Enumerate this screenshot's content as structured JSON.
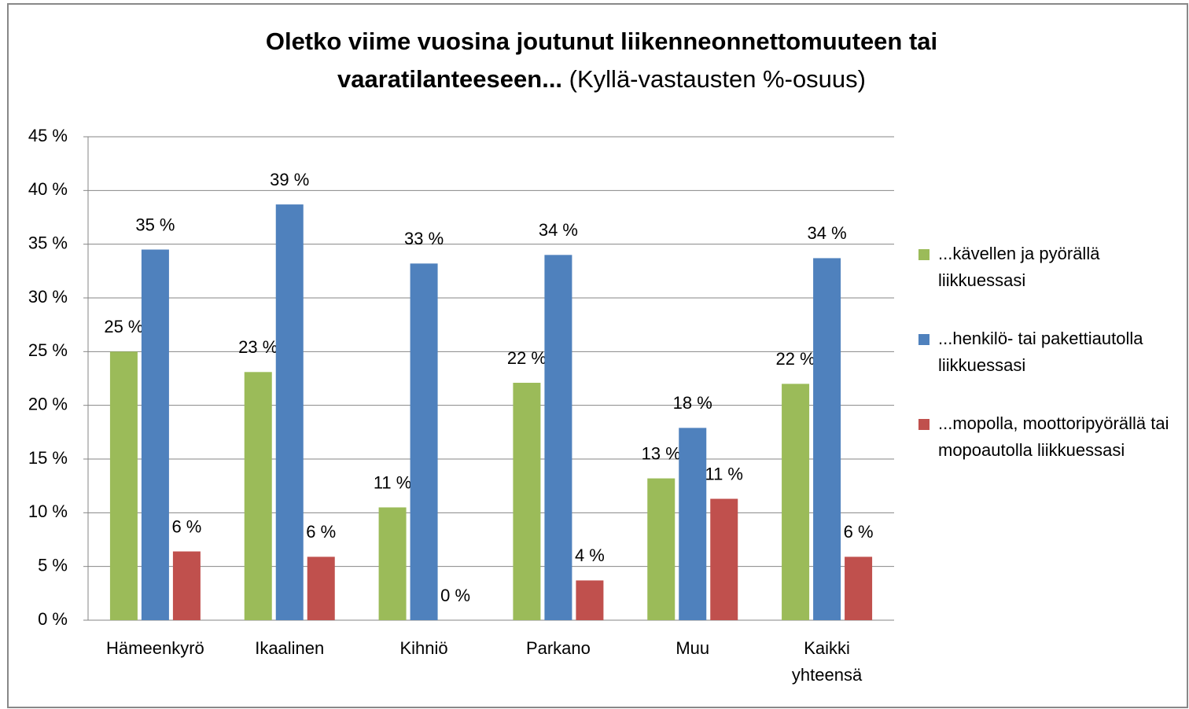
{
  "chart_data": {
    "type": "bar",
    "title": [
      "Oletko viime vuosina joutunut liikenneonnettomuuteen tai",
      "vaaratilanteeseen..."
    ],
    "subtitle": "(Kyllä-vastausten %-osuus)",
    "categories": [
      "Hämeenkyrö",
      "Ikaalinen",
      "Kihniö",
      "Parkano",
      "Muu",
      "Kaikki yhteensä"
    ],
    "series": [
      {
        "name": "...kävellen ja pyörällä liikkuessasi",
        "color": "#9bbb59",
        "values": [
          25.0,
          23.1,
          10.5,
          22.1,
          13.2,
          22.0
        ],
        "value_labels": [
          "25 %",
          "23 %",
          "11 %",
          "22 %",
          "13 %",
          "22 %"
        ]
      },
      {
        "name": "...henkilö- tai pakettiautolla liikkuessasi",
        "color": "#4f81bd",
        "values": [
          34.5,
          38.7,
          33.2,
          34.0,
          17.9,
          33.7
        ],
        "value_labels": [
          "35 %",
          "39 %",
          "33 %",
          "34 %",
          "18 %",
          "34 %"
        ]
      },
      {
        "name": "...mopolla, moottoripyörällä tai mopoautolla liikkuessasi",
        "color": "#c0504d",
        "values": [
          6.4,
          5.9,
          0,
          3.7,
          11.3,
          5.9
        ],
        "value_labels": [
          "6 %",
          "6 %",
          "0 %",
          "4 %",
          "11 %",
          "6 %"
        ]
      }
    ],
    "ylim": [
      0,
      45
    ],
    "yticks": [
      {
        "value": 0,
        "label": "0 %"
      },
      {
        "value": 5,
        "label": "5 %"
      },
      {
        "value": 10,
        "label": "10 %"
      },
      {
        "value": 15,
        "label": "15 %"
      },
      {
        "value": 20,
        "label": "20 %"
      },
      {
        "value": 25,
        "label": "25 %"
      },
      {
        "value": 30,
        "label": "30 %"
      },
      {
        "value": 35,
        "label": "35 %"
      },
      {
        "value": 40,
        "label": "40 %"
      },
      {
        "value": 45,
        "label": "45 %"
      }
    ],
    "grid": true,
    "legend": "right"
  }
}
